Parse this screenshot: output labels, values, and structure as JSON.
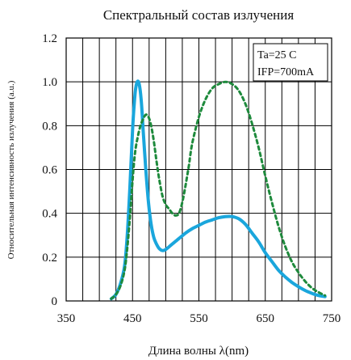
{
  "chart_data": {
    "type": "line",
    "title": "Спектральный состав излучения",
    "xlabel": "Длина волны λ(nm)",
    "ylabel": "Относительная интенсивность излучения (a.u.)",
    "xlim": [
      350,
      750
    ],
    "ylim": [
      0,
      1.2
    ],
    "xticks": [
      "350",
      "450",
      "550",
      "650",
      "750"
    ],
    "yticks": [
      "0",
      "0.2",
      "0.4",
      "0.6",
      "0.8",
      "1.0",
      "1.2"
    ],
    "grid": true,
    "annotation_lines": [
      "Ta=25 C",
      "IFP=700mA"
    ],
    "series": [
      {
        "style": "solid",
        "color": "#1aa6dc",
        "x": [
          418,
          425,
          432,
          438,
          442,
          446,
          450,
          454,
          457,
          460,
          463,
          466,
          470,
          474,
          478,
          482,
          486,
          490,
          495,
          500,
          510,
          520,
          530,
          540,
          550,
          560,
          570,
          580,
          590,
          600,
          610,
          620,
          630,
          640,
          650,
          660,
          670,
          680,
          690,
          700,
          710,
          720,
          730,
          740
        ],
        "y": [
          0.01,
          0.03,
          0.08,
          0.16,
          0.3,
          0.52,
          0.78,
          0.95,
          1.0,
          0.99,
          0.92,
          0.78,
          0.6,
          0.45,
          0.35,
          0.29,
          0.26,
          0.24,
          0.23,
          0.235,
          0.26,
          0.285,
          0.31,
          0.33,
          0.345,
          0.36,
          0.37,
          0.38,
          0.385,
          0.385,
          0.375,
          0.35,
          0.31,
          0.27,
          0.22,
          0.18,
          0.14,
          0.11,
          0.085,
          0.065,
          0.048,
          0.035,
          0.025,
          0.02
        ]
      },
      {
        "style": "dashed",
        "color": "#1e8a3c",
        "x": [
          418,
          425,
          432,
          438,
          442,
          446,
          450,
          454,
          458,
          462,
          466,
          470,
          474,
          478,
          482,
          486,
          490,
          495,
          500,
          505,
          510,
          515,
          520,
          525,
          530,
          535,
          540,
          550,
          560,
          570,
          580,
          590,
          600,
          610,
          620,
          630,
          640,
          650,
          660,
          670,
          680,
          690,
          700,
          710,
          720,
          730,
          740
        ],
        "y": [
          0.01,
          0.03,
          0.07,
          0.14,
          0.24,
          0.38,
          0.55,
          0.68,
          0.75,
          0.8,
          0.83,
          0.85,
          0.84,
          0.8,
          0.73,
          0.64,
          0.56,
          0.48,
          0.44,
          0.42,
          0.4,
          0.39,
          0.4,
          0.45,
          0.53,
          0.62,
          0.72,
          0.84,
          0.92,
          0.97,
          0.99,
          1.0,
          0.99,
          0.96,
          0.9,
          0.81,
          0.7,
          0.57,
          0.45,
          0.34,
          0.25,
          0.18,
          0.13,
          0.09,
          0.06,
          0.04,
          0.025
        ]
      }
    ]
  }
}
